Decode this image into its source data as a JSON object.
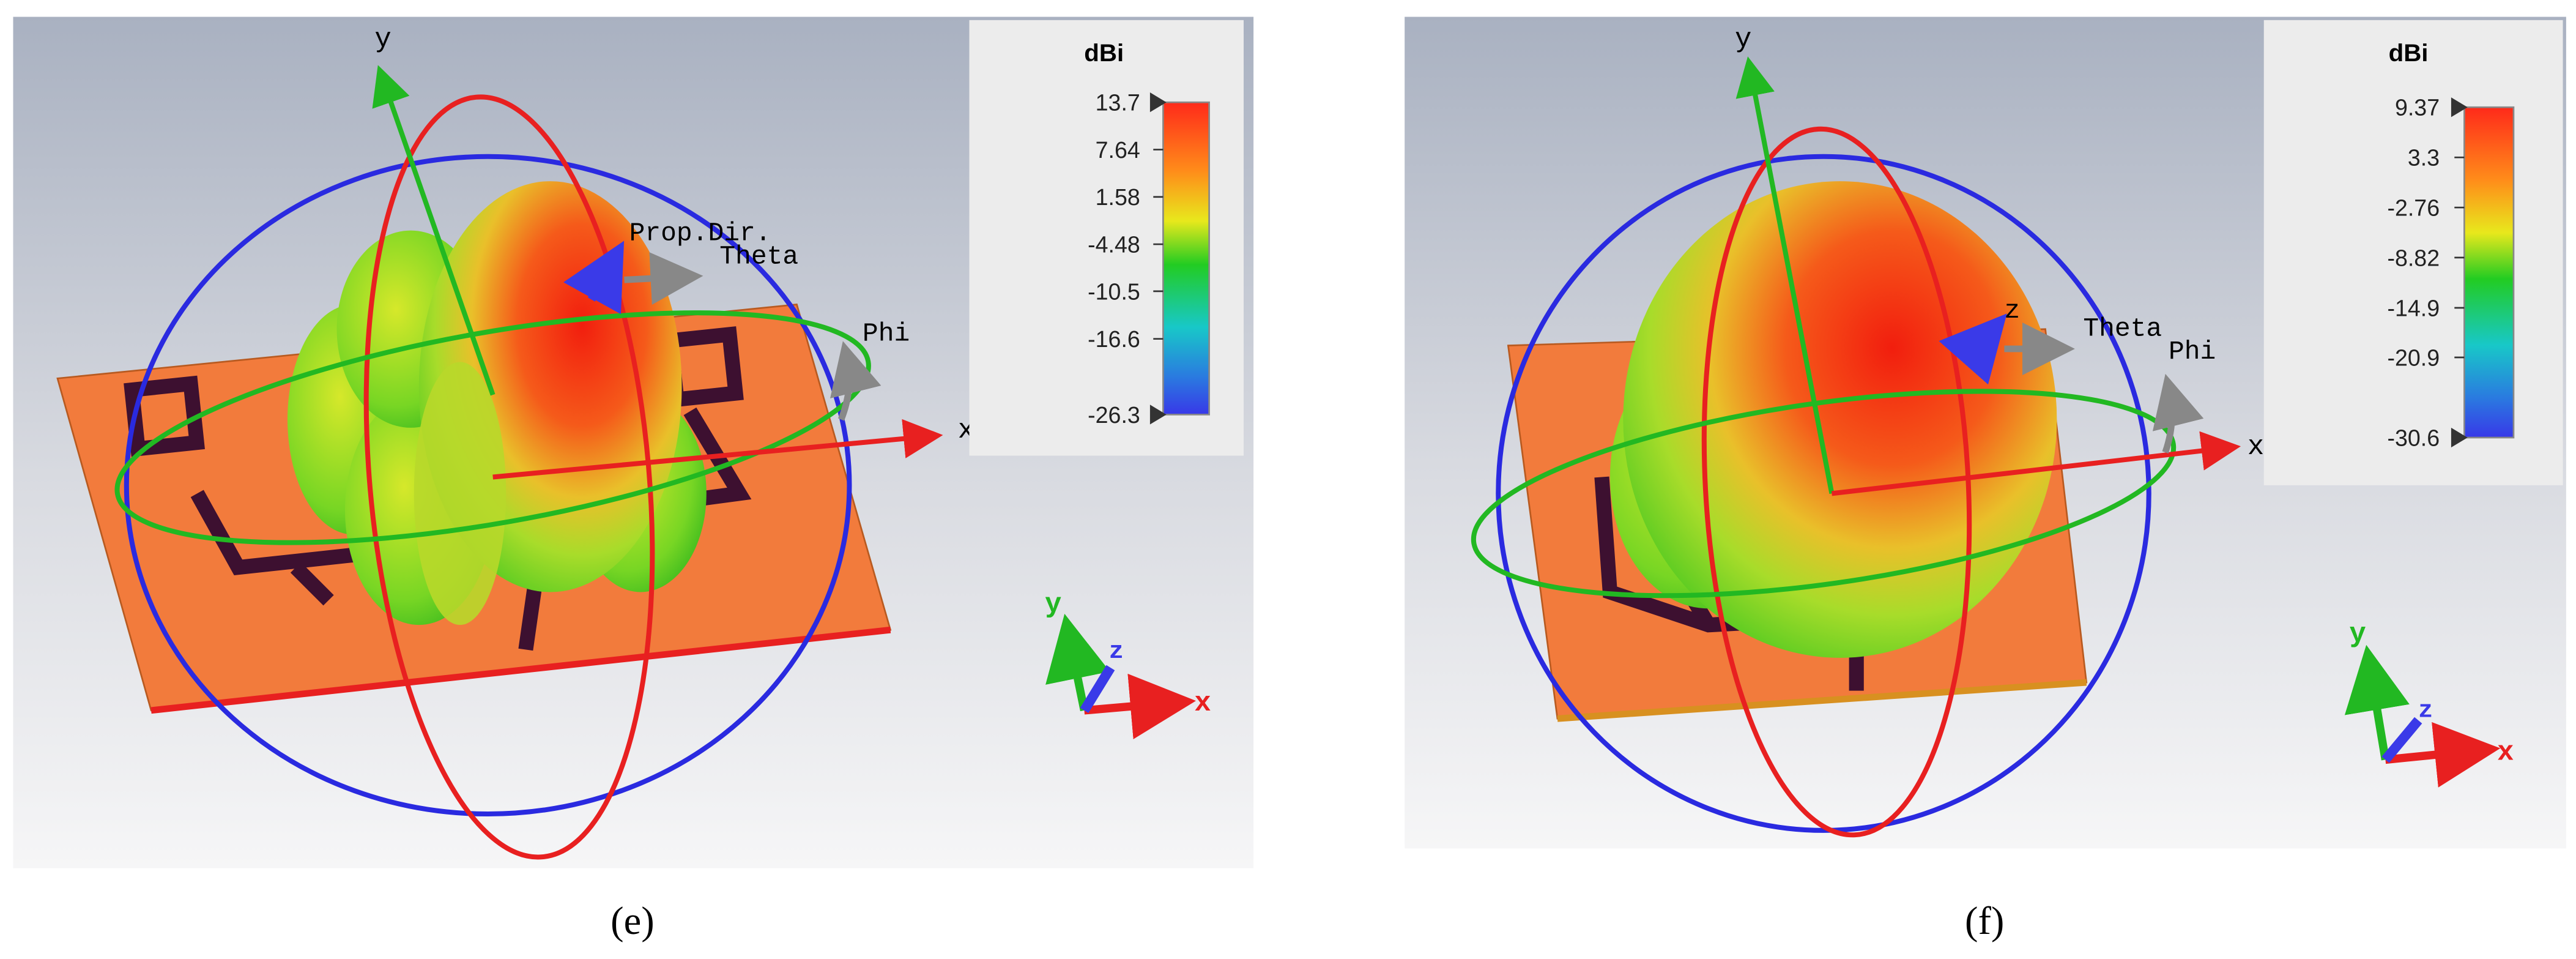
{
  "panels": [
    {
      "caption": "(e)",
      "legend": {
        "unit": "dBi",
        "lim": [
          -26.3,
          13.7
        ],
        "ticks": [
          13.7,
          7.64,
          1.58,
          -4.48,
          -10.5,
          -16.6,
          -26.3
        ]
      },
      "axis_labels": {
        "y": "y",
        "x": "x",
        "prop_dir": "Prop.Dir.",
        "theta": "Theta",
        "phi": "Phi"
      },
      "triad": {
        "y": "y",
        "z": "z",
        "x": "x"
      }
    },
    {
      "caption": "(f)",
      "legend": {
        "unit": "dBi",
        "lim": [
          -30.6,
          9.37
        ],
        "ticks": [
          9.37,
          3.3,
          -2.76,
          -8.82,
          -14.9,
          -20.9,
          -30.6
        ]
      },
      "axis_labels": {
        "y": "y",
        "x": "x",
        "z": "z",
        "theta": "Theta",
        "phi": "Phi"
      },
      "triad": {
        "y": "y",
        "z": "z",
        "x": "x"
      }
    }
  ]
}
